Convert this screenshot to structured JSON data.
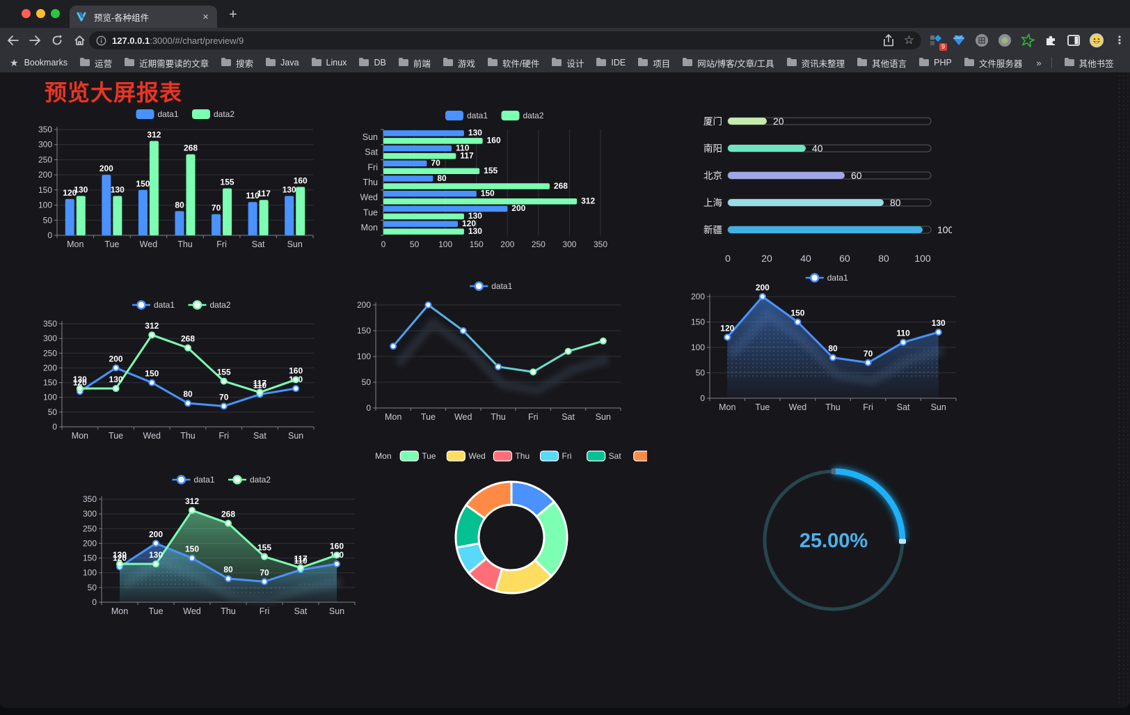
{
  "browser": {
    "tab_title": "预览-各种组件",
    "url": {
      "host": "127.0.0.1",
      "rest": ":3000/#/chart/preview/9"
    },
    "bookmarks_label": "Bookmarks",
    "bookmarks": [
      "运营",
      "近期需要读的文章",
      "搜索",
      "Java",
      "Linux",
      "DB",
      "前端",
      "游戏",
      "软件/硬件",
      "设计",
      "IDE",
      "项目",
      "网站/博客/文章/工具",
      "资讯未整理",
      "其他语言",
      "PHP",
      "文件服务器"
    ],
    "bookmarks_overflow": "»",
    "other_bookmarks": "其他书签",
    "extension_badge": "9",
    "icons": {
      "close": "×",
      "new_tab": "+",
      "menu": "⋮",
      "star": "☆",
      "bookmark_star": "★",
      "overflow": "»"
    }
  },
  "page": {
    "title": "预览大屏报表",
    "title_color": "#ea3524"
  },
  "chart_data": [
    {
      "id": "c1",
      "type": "bar",
      "legend_position": "top",
      "categories": [
        "Mon",
        "Tue",
        "Wed",
        "Thu",
        "Fri",
        "Sat",
        "Sun"
      ],
      "series": [
        {
          "name": "data1",
          "color": "#4992ff",
          "values": [
            120,
            200,
            150,
            80,
            70,
            110,
            130
          ]
        },
        {
          "name": "data2",
          "color": "#7cffb2",
          "values": [
            130,
            130,
            312,
            268,
            155,
            117,
            160
          ]
        }
      ],
      "ylim": [
        0,
        350
      ],
      "yticks": [
        0,
        50,
        100,
        150,
        200,
        250,
        300,
        350
      ],
      "grid": true
    },
    {
      "id": "c2",
      "type": "bar-horizontal",
      "legend_position": "top",
      "categories": [
        "Mon",
        "Tue",
        "Wed",
        "Thu",
        "Fri",
        "Sat",
        "Sun"
      ],
      "series": [
        {
          "name": "data1",
          "color": "#4992ff",
          "values": [
            120,
            200,
            150,
            80,
            70,
            110,
            130
          ]
        },
        {
          "name": "data2",
          "color": "#7cffb2",
          "values": [
            130,
            130,
            312,
            268,
            155,
            117,
            160
          ]
        }
      ],
      "xlim": [
        0,
        350
      ],
      "xticks": [
        0,
        50,
        100,
        150,
        200,
        250,
        300,
        350
      ],
      "grid": true
    },
    {
      "id": "c3",
      "type": "progress-bars",
      "categories": [
        "厦门",
        "南阳",
        "北京",
        "上海",
        "新疆"
      ],
      "values": [
        20,
        40,
        60,
        80,
        100
      ],
      "colors": [
        "#c4ebad",
        "#6be6c1",
        "#a0a7e6",
        "#96dee8",
        "#3fb1e3"
      ],
      "xlim": [
        0,
        100
      ],
      "xticks": [
        0,
        20,
        40,
        60,
        80,
        100
      ]
    },
    {
      "id": "c4",
      "type": "line",
      "legend_position": "top",
      "categories": [
        "Mon",
        "Tue",
        "Wed",
        "Thu",
        "Fri",
        "Sat",
        "Sun"
      ],
      "series": [
        {
          "name": "data1",
          "color": "#4992ff",
          "values": [
            120,
            200,
            150,
            80,
            70,
            110,
            130
          ]
        },
        {
          "name": "data2",
          "color": "#7cffb2",
          "values": [
            130,
            130,
            312,
            268,
            155,
            117,
            160
          ]
        }
      ],
      "ylim": [
        0,
        350
      ],
      "yticks": [
        0,
        50,
        100,
        150,
        200,
        250,
        300,
        350
      ],
      "grid": true,
      "show_labels": true
    },
    {
      "id": "c5",
      "type": "line",
      "legend_position": "top",
      "categories": [
        "Mon",
        "Tue",
        "Wed",
        "Thu",
        "Fri",
        "Sat",
        "Sun"
      ],
      "series": [
        {
          "name": "data1",
          "color": "#4992ff",
          "gradient": [
            "#4992ff",
            "#7cffb2"
          ],
          "values": [
            120,
            200,
            150,
            80,
            70,
            110,
            130
          ]
        }
      ],
      "ylim": [
        0,
        200
      ],
      "yticks": [
        0,
        50,
        100,
        150,
        200
      ],
      "grid": true,
      "show_labels": false,
      "shadow": "blur"
    },
    {
      "id": "c6",
      "type": "area",
      "legend_position": "top",
      "categories": [
        "Mon",
        "Tue",
        "Wed",
        "Thu",
        "Fri",
        "Sat",
        "Sun"
      ],
      "series": [
        {
          "name": "data1",
          "color": "#4992ff",
          "values": [
            120,
            200,
            150,
            80,
            70,
            110,
            130
          ]
        }
      ],
      "ylim": [
        0,
        200
      ],
      "yticks": [
        0,
        50,
        100,
        150,
        200
      ],
      "grid": true,
      "show_labels": true,
      "shadow": "dots"
    },
    {
      "id": "c7",
      "type": "area",
      "legend_position": "top",
      "categories": [
        "Mon",
        "Tue",
        "Wed",
        "Thu",
        "Fri",
        "Sat",
        "Sun"
      ],
      "series": [
        {
          "name": "data1",
          "color": "#4992ff",
          "values": [
            120,
            200,
            150,
            80,
            70,
            110,
            130
          ]
        },
        {
          "name": "data2",
          "color": "#7cffb2",
          "values": [
            130,
            130,
            312,
            268,
            155,
            117,
            160
          ]
        }
      ],
      "ylim": [
        0,
        350
      ],
      "yticks": [
        0,
        50,
        100,
        150,
        200,
        250,
        300,
        350
      ],
      "grid": true,
      "show_labels": true,
      "shadow": "dots"
    },
    {
      "id": "c8",
      "type": "pie",
      "legend_position": "top",
      "categories": [
        "Mon",
        "Tue",
        "Wed",
        "Thu",
        "Fri",
        "Sat",
        "Sun"
      ],
      "values": [
        120,
        200,
        150,
        80,
        70,
        110,
        130
      ],
      "colors": [
        "#4992ff",
        "#7cffb2",
        "#fddd60",
        "#ff6e76",
        "#58d9f9",
        "#05c091",
        "#ff8a45"
      ],
      "donut": true
    },
    {
      "id": "c9",
      "type": "gauge",
      "percent": 25,
      "value_label": "25.00%",
      "color": "#1fb0f8",
      "track_color": "#27464f",
      "text_color": "#4db1ec"
    }
  ]
}
